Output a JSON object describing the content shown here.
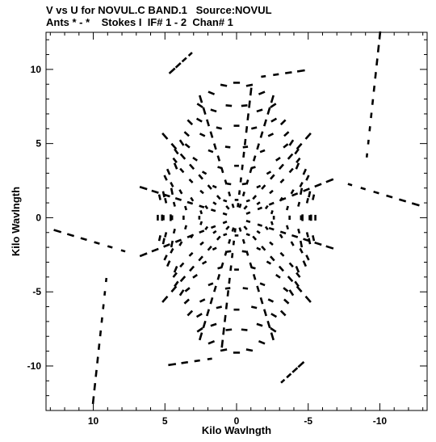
{
  "header": {
    "title_line1": "V vs U for NOVUL.C BAND.1   Source:NOVUL",
    "title_line2": "Ants * - *    Stokes I  IF# 1 - 2  Chan# 1"
  },
  "chart_data": {
    "type": "scatter",
    "xlabel": "Kilo Wavlngth",
    "ylabel": "Kilo Wavlngth",
    "xlim": [
      13.3,
      -13.3
    ],
    "ylim": [
      -13.0,
      12.5
    ],
    "x_ticks": [
      10,
      5,
      0,
      -5,
      -10
    ],
    "y_ticks": [
      10,
      5,
      0,
      -5,
      -10
    ],
    "x_tick_labels": [
      "10",
      "5",
      "0",
      "-5",
      "-10"
    ],
    "y_tick_labels": [
      "10",
      "5",
      "0",
      "-5",
      "-10"
    ],
    "marker_color": "#000000",
    "uv_spokes": {
      "description": "uv tracks forming a star-shaped pattern; each arm listed as a straight segment in data units",
      "arms": [
        {
          "from": [
            0.0,
            0.0
          ],
          "to": [
            -1.0,
            8.5
          ]
        },
        {
          "from": [
            0.0,
            0.0
          ],
          "to": [
            1.0,
            -8.5
          ]
        },
        {
          "from": [
            0.0,
            0.0
          ],
          "to": [
            -2.5,
            8.0
          ]
        },
        {
          "from": [
            0.0,
            0.0
          ],
          "to": [
            2.5,
            -8.0
          ]
        },
        {
          "from": [
            0.0,
            0.0
          ],
          "to": [
            2.5,
            8.0
          ]
        },
        {
          "from": [
            0.0,
            0.0
          ],
          "to": [
            -2.5,
            -8.0
          ]
        },
        {
          "from": [
            0.0,
            0.0
          ],
          "to": [
            -5.0,
            5.5
          ]
        },
        {
          "from": [
            0.0,
            0.0
          ],
          "to": [
            5.0,
            -5.5
          ]
        },
        {
          "from": [
            0.0,
            0.0
          ],
          "to": [
            5.0,
            5.5
          ]
        },
        {
          "from": [
            0.0,
            0.0
          ],
          "to": [
            -5.0,
            -5.5
          ]
        },
        {
          "from": [
            0.0,
            0.0
          ],
          "to": [
            -6.5,
            2.5
          ]
        },
        {
          "from": [
            0.0,
            0.0
          ],
          "to": [
            6.5,
            -2.5
          ]
        },
        {
          "from": [
            0.0,
            0.0
          ],
          "to": [
            6.5,
            2.0
          ]
        },
        {
          "from": [
            0.0,
            0.0
          ],
          "to": [
            -6.5,
            -2.0
          ]
        },
        {
          "from": [
            -9.0,
            3.3
          ],
          "to": [
            -10.0,
            12.3
          ]
        },
        {
          "from": [
            9.0,
            -3.3
          ],
          "to": [
            10.0,
            -12.3
          ]
        },
        {
          "from": [
            -7.0,
            2.5
          ],
          "to": [
            -12.5,
            0.9
          ]
        },
        {
          "from": [
            7.0,
            -2.5
          ],
          "to": [
            12.5,
            -0.9
          ]
        },
        {
          "from": [
            2.8,
            11.4
          ],
          "to": [
            4.5,
            9.9
          ]
        },
        {
          "from": [
            -2.8,
            -11.4
          ],
          "to": [
            -4.5,
            -9.9
          ]
        },
        {
          "from": [
            -1.0,
            9.4
          ],
          "to": [
            -4.5,
            9.9
          ]
        },
        {
          "from": [
            1.0,
            -9.4
          ],
          "to": [
            4.5,
            -9.9
          ]
        }
      ]
    },
    "rings": [
      {
        "ru": 2.6,
        "rv": 1.2
      },
      {
        "ru": 3.7,
        "rv": 2.3
      },
      {
        "ru": 4.5,
        "rv": 3.5
      },
      {
        "ru": 5.1,
        "rv": 4.8
      },
      {
        "ru": 5.5,
        "rv": 6.2
      },
      {
        "ru": 5.2,
        "rv": 7.6
      },
      {
        "ru": 4.6,
        "rv": 9.1
      }
    ]
  }
}
